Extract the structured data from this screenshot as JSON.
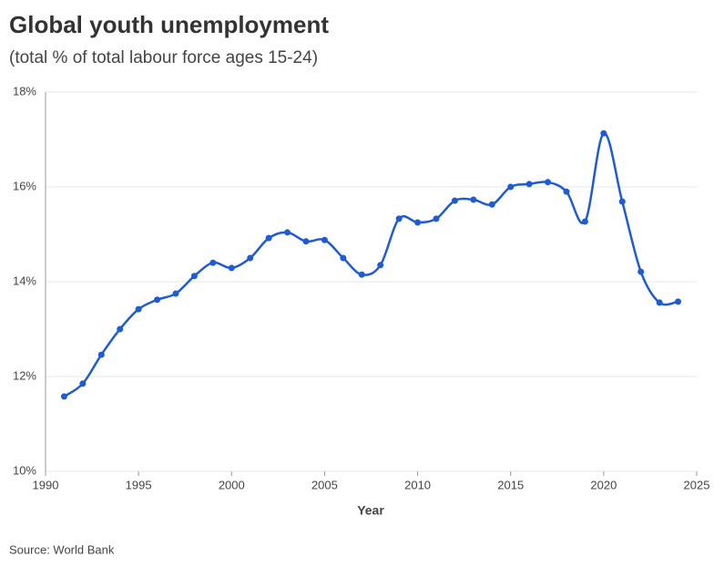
{
  "chart_data": {
    "type": "line",
    "title": "Global youth unemployment",
    "subtitle": "(total % of total labour force ages 15-24)",
    "x_label": "Year",
    "source": "Source: World Bank",
    "x": [
      1991,
      1992,
      1993,
      1994,
      1995,
      1996,
      1997,
      1998,
      1999,
      2000,
      2001,
      2002,
      2003,
      2004,
      2005,
      2006,
      2007,
      2008,
      2009,
      2010,
      2011,
      2012,
      2013,
      2014,
      2015,
      2016,
      2017,
      2018,
      2019,
      2020,
      2021,
      2022,
      2023,
      2024
    ],
    "series": [
      {
        "color": "#1f5bd1",
        "values": [
          11.58,
          11.85,
          12.46,
          13.0,
          13.42,
          13.62,
          13.75,
          14.12,
          14.4,
          14.29,
          14.5,
          14.92,
          15.04,
          14.85,
          14.88,
          14.5,
          14.15,
          14.35,
          15.33,
          15.25,
          15.33,
          15.71,
          15.73,
          15.63,
          16.0,
          16.06,
          16.1,
          15.9,
          15.27,
          17.13,
          15.69,
          14.21,
          13.56,
          13.58
        ]
      }
    ],
    "xlim": [
      1990,
      2025
    ],
    "xticks": [
      1990,
      1995,
      2000,
      2005,
      2010,
      2015,
      2020,
      2025
    ],
    "ylim": [
      10,
      18
    ],
    "yticks": [
      {
        "value": 10,
        "label": "10%"
      },
      {
        "value": 12,
        "label": "12%"
      },
      {
        "value": 14,
        "label": "14%"
      },
      {
        "value": 16,
        "label": "16%"
      },
      {
        "value": 18,
        "label": "18%"
      }
    ],
    "grid": true
  }
}
